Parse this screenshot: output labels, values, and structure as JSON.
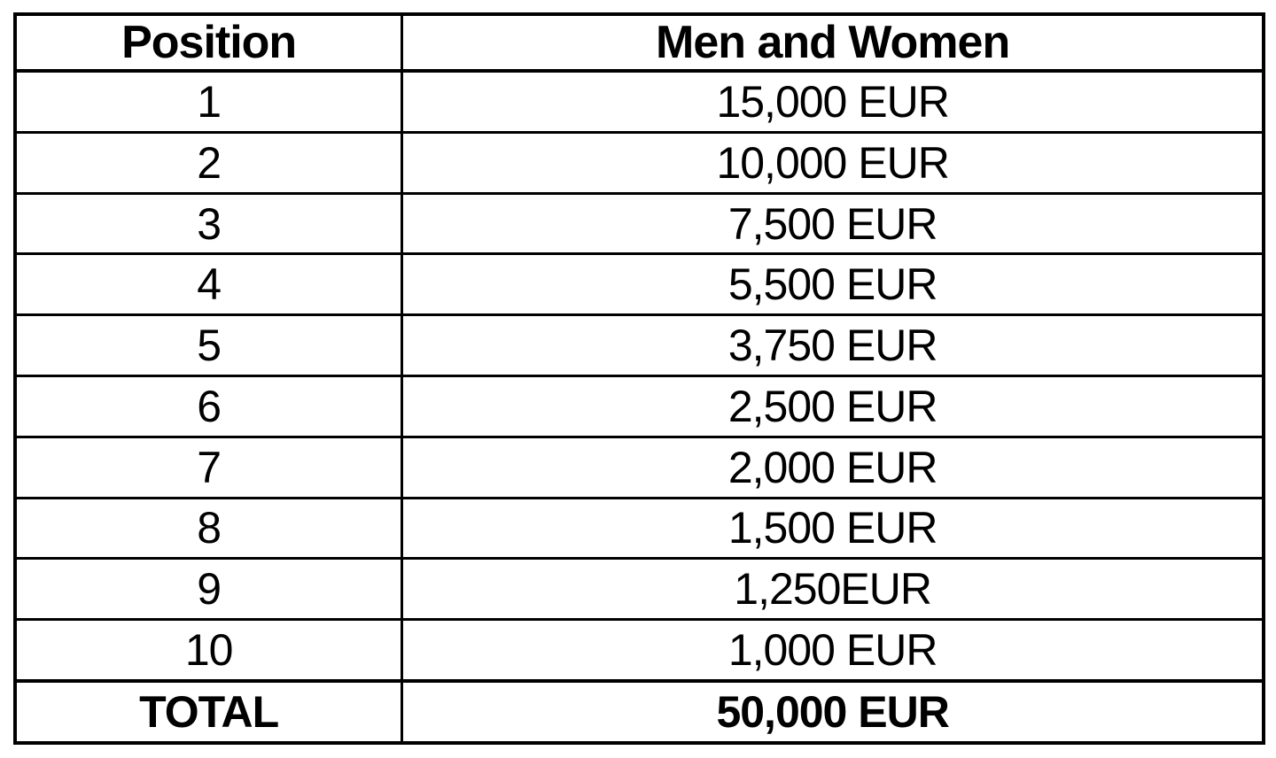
{
  "table": {
    "columns": [
      {
        "label": "Position"
      },
      {
        "label": "Men and Women"
      }
    ],
    "rows": [
      {
        "position": "1",
        "prize": "15,000 EUR"
      },
      {
        "position": "2",
        "prize": "10,000 EUR"
      },
      {
        "position": "3",
        "prize": "7,500 EUR"
      },
      {
        "position": "4",
        "prize": "5,500 EUR"
      },
      {
        "position": "5",
        "prize": "3,750 EUR"
      },
      {
        "position": "6",
        "prize": "2,500 EUR"
      },
      {
        "position": "7",
        "prize": "2,000 EUR"
      },
      {
        "position": "8",
        "prize": "1,500 EUR"
      },
      {
        "position": "9",
        "prize": "1,250EUR"
      },
      {
        "position": "10",
        "prize": "1,000 EUR"
      }
    ],
    "total_row": {
      "label": "TOTAL",
      "value": "50,000 EUR"
    }
  },
  "colors": {
    "border": "#000000",
    "text": "#000000",
    "background": "#ffffff"
  }
}
